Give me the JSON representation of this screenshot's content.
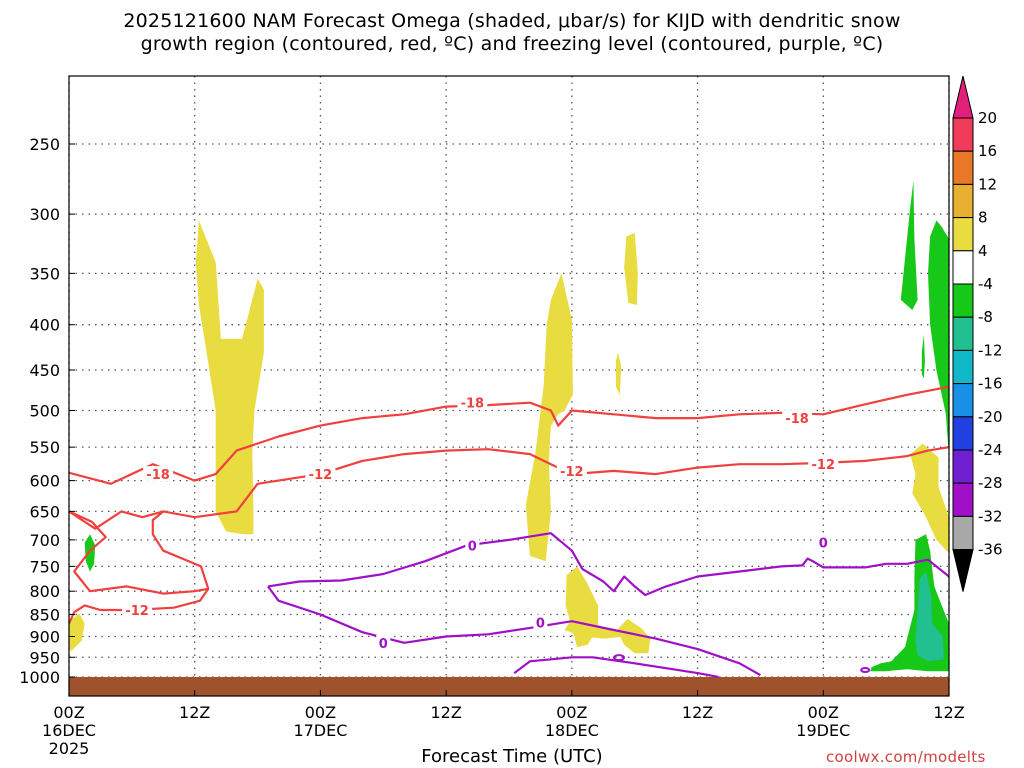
{
  "title_line1": "2025121600 NAM Forecast Omega (shaded, μbar/s) for KIJD with dendritic snow",
  "title_line2": "growth region (contoured, red, ºC) and freezing level (contoured, purple, ºC)",
  "xlabel": "Forecast Time (UTC)",
  "credit": "coolwx.com/modelts",
  "chart_data": {
    "type": "heatmap",
    "y_axis": {
      "scale": "log-pressure",
      "reversed": true,
      "ticks": [
        250,
        300,
        350,
        400,
        450,
        500,
        550,
        600,
        650,
        700,
        750,
        800,
        850,
        900,
        950,
        1000
      ],
      "range": [
        200,
        1040
      ]
    },
    "x_axis": {
      "range_hours": [
        0,
        84
      ],
      "ticks": [
        {
          "h": 0,
          "label1": "00Z",
          "label2": "16DEC",
          "label3": "2025"
        },
        {
          "h": 12,
          "label1": "12Z",
          "label2": "",
          "label3": ""
        },
        {
          "h": 24,
          "label1": "00Z",
          "label2": "17DEC",
          "label3": ""
        },
        {
          "h": 36,
          "label1": "12Z",
          "label2": "",
          "label3": ""
        },
        {
          "h": 48,
          "label1": "00Z",
          "label2": "18DEC",
          "label3": ""
        },
        {
          "h": 60,
          "label1": "12Z",
          "label2": "",
          "label3": ""
        },
        {
          "h": 72,
          "label1": "00Z",
          "label2": "19DEC",
          "label3": ""
        },
        {
          "h": 84,
          "label1": "12Z",
          "label2": "",
          "label3": ""
        }
      ]
    },
    "grid": true,
    "colorbar": {
      "labels": [
        "20",
        "16",
        "12",
        "8",
        "4",
        "-4",
        "-8",
        "-12",
        "-16",
        "-20",
        "-24",
        "-28",
        "-32",
        "-36"
      ],
      "colors": [
        "#f03c5a",
        "#e87828",
        "#e8b030",
        "#e8dc40",
        "#ffffff",
        "#18c818",
        "#22c090",
        "#10b8c8",
        "#1890e8",
        "#2040e0",
        "#7020d0",
        "#a010c8",
        "#a8a8a8"
      ],
      "top_arrow_color": "#e0207a",
      "bottom_arrow_color": "#000000"
    },
    "shade_colors": {
      "w4": "#e8dc40",
      "wm4": "#18c818",
      "wm8": "#22c090"
    },
    "contour_colors": {
      "dgz": "#f04040",
      "freezing": "#a010c8",
      "ground": "#a0522d"
    },
    "contour_labels": [
      {
        "text": "-18",
        "h": 8.5,
        "p": 590,
        "kind": "dgz"
      },
      {
        "text": "-12",
        "h": 6.5,
        "p": 840,
        "kind": "dgz"
      },
      {
        "text": "-12",
        "h": 24,
        "p": 590,
        "kind": "dgz"
      },
      {
        "text": "-18",
        "h": 38.5,
        "p": 490,
        "kind": "dgz"
      },
      {
        "text": "-12",
        "h": 48,
        "p": 585,
        "kind": "dgz"
      },
      {
        "text": "-18",
        "h": 69.5,
        "p": 510,
        "kind": "dgz"
      },
      {
        "text": "-12",
        "h": 72,
        "p": 575,
        "kind": "dgz"
      },
      {
        "text": "0",
        "h": 30,
        "p": 915,
        "kind": "freezing"
      },
      {
        "text": "0",
        "h": 38.5,
        "p": 710,
        "kind": "freezing"
      },
      {
        "text": "0",
        "h": 72,
        "p": 705,
        "kind": "freezing"
      },
      {
        "text": "0",
        "h": 45,
        "p": 868,
        "kind": "freezing"
      }
    ],
    "dgz_top": [
      [
        0,
        588
      ],
      [
        4,
        605
      ],
      [
        8,
        575
      ],
      [
        12,
        600
      ],
      [
        14,
        590
      ],
      [
        16,
        555
      ],
      [
        20,
        535
      ],
      [
        24,
        520
      ],
      [
        28,
        510
      ],
      [
        32,
        505
      ],
      [
        36,
        495
      ],
      [
        40,
        493
      ],
      [
        44,
        490
      ],
      [
        46,
        500
      ],
      [
        46.7,
        520
      ],
      [
        48,
        500
      ],
      [
        52,
        505
      ],
      [
        56,
        510
      ],
      [
        60,
        510
      ],
      [
        64,
        505
      ],
      [
        68,
        503
      ],
      [
        72,
        505
      ],
      [
        76,
        492
      ],
      [
        80,
        480
      ],
      [
        82,
        475
      ],
      [
        84,
        470
      ]
    ],
    "dgz_bottom": [
      [
        0,
        650
      ],
      [
        2.5,
        680
      ],
      [
        5,
        650
      ],
      [
        7,
        660
      ],
      [
        9,
        650
      ],
      [
        12,
        660
      ],
      [
        16,
        650
      ],
      [
        18,
        605
      ],
      [
        20,
        600
      ],
      [
        24,
        590
      ],
      [
        28,
        570
      ],
      [
        32,
        560
      ],
      [
        36,
        555
      ],
      [
        40,
        553
      ],
      [
        44,
        560
      ],
      [
        46,
        575
      ],
      [
        48,
        590
      ],
      [
        52,
        585
      ],
      [
        56,
        590
      ],
      [
        60,
        580
      ],
      [
        64,
        575
      ],
      [
        68,
        575
      ],
      [
        72,
        573
      ],
      [
        76,
        570
      ],
      [
        80,
        563
      ],
      [
        82,
        555
      ],
      [
        84,
        550
      ]
    ],
    "dgz_left_loop": [
      [
        0,
        650
      ],
      [
        2.2,
        668
      ],
      [
        3.5,
        695
      ],
      [
        2,
        720
      ],
      [
        0.5,
        760
      ],
      [
        2,
        800
      ],
      [
        5.5,
        790
      ],
      [
        9,
        805
      ],
      [
        12,
        800
      ],
      [
        13.3,
        795
      ],
      [
        12.6,
        750
      ],
      [
        9,
        720
      ],
      [
        8,
        690
      ],
      [
        8,
        665
      ],
      [
        9,
        650
      ]
    ],
    "dgz_lower": [
      [
        0,
        870
      ],
      [
        0.5,
        845
      ],
      [
        1.5,
        830
      ],
      [
        3,
        840
      ],
      [
        6,
        840
      ],
      [
        10,
        835
      ],
      [
        12.5,
        820
      ],
      [
        13.3,
        795
      ]
    ],
    "frz_main": [
      [
        19,
        790
      ],
      [
        22,
        780
      ],
      [
        26,
        778
      ],
      [
        30,
        765
      ],
      [
        34,
        740
      ],
      [
        38,
        710
      ],
      [
        42,
        700
      ],
      [
        46,
        688
      ],
      [
        48,
        720
      ],
      [
        49,
        755
      ],
      [
        51,
        780
      ],
      [
        52,
        800
      ],
      [
        53,
        770
      ],
      [
        54,
        790
      ],
      [
        55,
        808
      ],
      [
        57,
        790
      ],
      [
        60,
        770
      ],
      [
        64,
        760
      ],
      [
        68,
        750
      ],
      [
        70,
        748
      ],
      [
        70.5,
        735
      ],
      [
        71,
        740
      ],
      [
        72,
        752
      ],
      [
        76,
        752
      ],
      [
        78,
        745
      ],
      [
        80,
        745
      ],
      [
        82,
        737
      ],
      [
        84,
        770
      ]
    ],
    "frz_lower": [
      [
        19,
        790
      ],
      [
        20,
        820
      ],
      [
        24,
        850
      ],
      [
        28,
        890
      ],
      [
        32,
        915
      ],
      [
        36,
        900
      ],
      [
        40,
        895
      ],
      [
        44,
        880
      ],
      [
        48,
        865
      ],
      [
        52,
        885
      ],
      [
        56,
        905
      ],
      [
        60,
        930
      ],
      [
        64,
        965
      ],
      [
        66,
        995
      ]
    ],
    "frz_small": [
      [
        42.5,
        990
      ],
      [
        44,
        960
      ],
      [
        48,
        950
      ],
      [
        50,
        950
      ],
      [
        54,
        965
      ],
      [
        60,
        990
      ],
      [
        62,
        1000
      ]
    ],
    "omega_blobs": {
      "w4": [
        [
          [
            12.4,
            305
          ],
          [
            14,
            340
          ],
          [
            14.5,
            415
          ],
          [
            16.5,
            415
          ],
          [
            17,
            395
          ],
          [
            18,
            355
          ],
          [
            18.6,
            365
          ],
          [
            18.6,
            430
          ],
          [
            17.7,
            500
          ],
          [
            17.5,
            560
          ],
          [
            17.6,
            650
          ],
          [
            17.6,
            690
          ],
          [
            16.6,
            690
          ],
          [
            15,
            685
          ],
          [
            14,
            650
          ],
          [
            14,
            560
          ],
          [
            14,
            500
          ],
          [
            13,
            420
          ],
          [
            12.4,
            380
          ],
          [
            12.1,
            340
          ]
        ],
        [
          [
            46,
            375
          ],
          [
            47,
            350
          ],
          [
            48,
            395
          ],
          [
            48.1,
            480
          ],
          [
            47.3,
            500
          ],
          [
            46.7,
            505
          ],
          [
            46,
            520
          ],
          [
            45.8,
            570
          ],
          [
            46,
            650
          ],
          [
            45.5,
            740
          ],
          [
            44,
            730
          ],
          [
            43.6,
            640
          ],
          [
            44.5,
            560
          ],
          [
            45.3,
            470
          ],
          [
            45.6,
            400
          ]
        ],
        [
          [
            53.2,
            318
          ],
          [
            54,
            315
          ],
          [
            54.3,
            350
          ],
          [
            54.2,
            380
          ],
          [
            53.4,
            378
          ],
          [
            53,
            345
          ]
        ],
        [
          [
            52.4,
            430
          ],
          [
            52.7,
            445
          ],
          [
            52.6,
            480
          ],
          [
            52.2,
            470
          ],
          [
            52.2,
            440
          ]
        ],
        [
          [
            47.5,
            768
          ],
          [
            48.5,
            750
          ],
          [
            49.5,
            785
          ],
          [
            50.5,
            830
          ],
          [
            50.5,
            880
          ],
          [
            49.5,
            920
          ],
          [
            48.5,
            925
          ],
          [
            48,
            880
          ],
          [
            47.4,
            830
          ]
        ],
        [
          [
            48,
            860
          ],
          [
            50,
            870
          ],
          [
            52,
            885
          ],
          [
            53.5,
            890
          ],
          [
            55,
            895
          ],
          [
            53,
            900
          ],
          [
            51,
            905
          ],
          [
            49,
            900
          ],
          [
            47.3,
            885
          ]
        ],
        [
          [
            52.3,
            885
          ],
          [
            53.3,
            860
          ],
          [
            54.6,
            880
          ],
          [
            55.5,
            905
          ],
          [
            55.3,
            940
          ],
          [
            54,
            940
          ],
          [
            53,
            920
          ]
        ],
        [
          [
            80.3,
            560
          ],
          [
            81.5,
            545
          ],
          [
            83,
            565
          ],
          [
            83,
            610
          ],
          [
            84,
            660
          ],
          [
            84,
            725
          ],
          [
            82.8,
            700
          ],
          [
            81.8,
            660
          ],
          [
            80.5,
            620
          ],
          [
            80.8,
            590
          ]
        ],
        [
          [
            0,
            865
          ],
          [
            1,
            848
          ],
          [
            1.5,
            870
          ],
          [
            1.2,
            910
          ],
          [
            0.2,
            935
          ],
          [
            0,
            925
          ]
        ]
      ],
      "wm4": [
        [
          [
            79.4,
            375
          ],
          [
            80.3,
            295
          ],
          [
            80.6,
            275
          ],
          [
            80.7,
            320
          ],
          [
            81,
            375
          ],
          [
            80.5,
            385
          ]
        ],
        [
          [
            82.2,
            318
          ],
          [
            82.8,
            305
          ],
          [
            83.3,
            310
          ],
          [
            84,
            320
          ],
          [
            84,
            565
          ],
          [
            83.7,
            505
          ],
          [
            82.8,
            450
          ],
          [
            82.2,
            400
          ],
          [
            82,
            350
          ]
        ],
        [
          [
            81.4,
            430
          ],
          [
            81.6,
            410
          ],
          [
            81.7,
            440
          ],
          [
            81.6,
            460
          ],
          [
            81.4,
            455
          ]
        ],
        [
          [
            1.5,
            705
          ],
          [
            2,
            690
          ],
          [
            2.5,
            710
          ],
          [
            2.4,
            745
          ],
          [
            2,
            760
          ],
          [
            1.6,
            740
          ]
        ],
        [
          [
            80.8,
            700
          ],
          [
            81.8,
            690
          ],
          [
            82.2,
            720
          ],
          [
            82.6,
            790
          ],
          [
            83.3,
            830
          ],
          [
            84,
            870
          ],
          [
            84,
            985
          ],
          [
            82,
            985
          ],
          [
            80,
            980
          ],
          [
            78,
            985
          ],
          [
            76.5,
            985
          ],
          [
            76.6,
            975
          ],
          [
            77.5,
            965
          ],
          [
            78.5,
            960
          ],
          [
            79.8,
            925
          ],
          [
            80.7,
            840
          ],
          [
            80.7,
            770
          ]
        ]
      ],
      "wm8": [
        [
          [
            81.2,
            775
          ],
          [
            81.8,
            760
          ],
          [
            82.3,
            810
          ],
          [
            82.4,
            870
          ],
          [
            83.4,
            900
          ],
          [
            83.5,
            955
          ],
          [
            82,
            960
          ],
          [
            81,
            945
          ],
          [
            80.8,
            910
          ],
          [
            81,
            840
          ]
        ]
      ]
    }
  }
}
